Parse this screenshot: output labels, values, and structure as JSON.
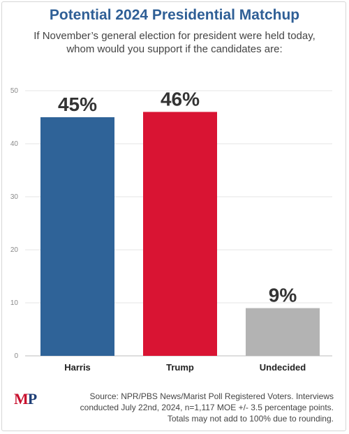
{
  "title": "Potential 2024 Presidential Matchup",
  "subtitle_lines": [
    "If November’s general election for president were held today,",
    "whom would you support if the candidates are:"
  ],
  "logo": {
    "text_m": "M",
    "text_p": "P"
  },
  "source_lines": [
    "Source: NPR/PBS News/Marist Poll Registered Voters. Interviews",
    "conducted July 22nd, 2024, n=1,117 MOE +/- 3.5 percentage points.",
    "Totals may not add to 100% due to rounding."
  ],
  "chart_data": {
    "type": "bar",
    "categories": [
      "Harris",
      "Trump",
      "Undecided"
    ],
    "values": [
      45,
      46,
      9
    ],
    "data_labels": [
      "45%",
      "46%",
      "9%"
    ],
    "colors": [
      "#2f6398",
      "#d91433",
      "#b3b3b3"
    ],
    "ylim": [
      0,
      50
    ],
    "yticks": [
      0,
      10,
      20,
      30,
      40,
      50
    ],
    "grid": true,
    "xlabel": "",
    "ylabel": ""
  }
}
